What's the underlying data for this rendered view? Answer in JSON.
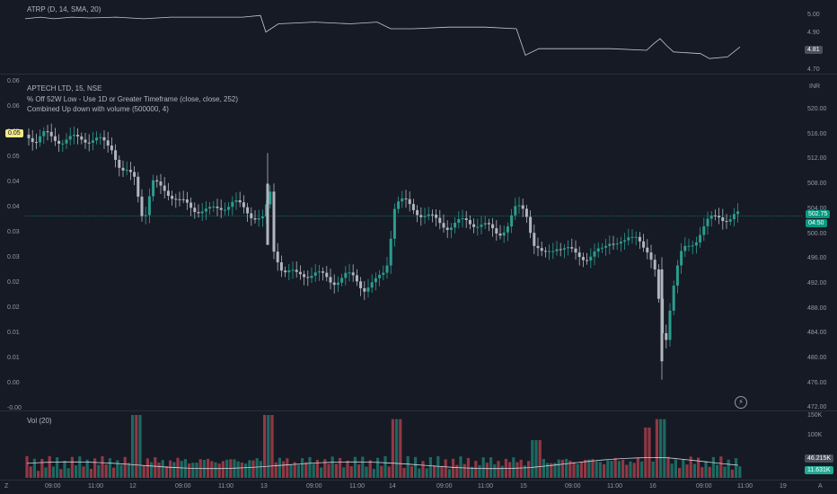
{
  "atr_pane": {
    "title": "ATRP (D, 14, SMA, 20)",
    "ticks": [
      "5.00",
      "4.90",
      "4.70"
    ],
    "current": "4.81",
    "line_color": "#c7c9d0"
  },
  "price_pane": {
    "symbol_line": "APTECH LTD, 15, NSE",
    "indicator_1": "% Off 52W Low  - Use 1D or Greater Timeframe (close, close, 252)",
    "indicator_2": "Combined Up down with volume (500000, 4)",
    "currency": "INR",
    "right_ticks": [
      "520.00",
      "516.00",
      "512.00",
      "508.00",
      "504.00",
      "500.00",
      "496.00",
      "492.00",
      "488.00",
      "484.00",
      "480.00",
      "476.00",
      "472.00"
    ],
    "left_ticks": [
      "0.06",
      "0.06",
      "0.05",
      "0.05",
      "0.04",
      "0.04",
      "0.03",
      "0.03",
      "0.02",
      "0.02",
      "0.01",
      "0.01",
      "0.00",
      "-0.00"
    ],
    "left_badge": "0.05",
    "price_badge": "502.75",
    "countdown": "04:50",
    "up_color": "#089981",
    "down_color": "#f23645",
    "candle_up": "#2a9d8f",
    "candle_down": "#b2b5be"
  },
  "volume_pane": {
    "title": "Vol (20)",
    "ticks": [
      "150K",
      "100K"
    ],
    "ma_badge": "46.215K",
    "vol_badge": "11.631K",
    "up_color": "#22ab94",
    "down_color": "#f7525f"
  },
  "time_axis": {
    "labels": [
      "09:00",
      "11:00",
      "12",
      "09:00",
      "11:00",
      "13",
      "09:00",
      "11:00",
      "14",
      "09:00",
      "11:00",
      "15",
      "09:00",
      "11:00",
      "16",
      "09:00",
      "11:00",
      "19"
    ],
    "left_icon": "Z",
    "right_icon": "A"
  },
  "chart_data": {
    "type": "candlestick",
    "price_range": [
      472,
      522
    ],
    "last_price": 502.75,
    "atr_range": [
      4.66,
      5.05
    ],
    "volume_max": 150000
  }
}
